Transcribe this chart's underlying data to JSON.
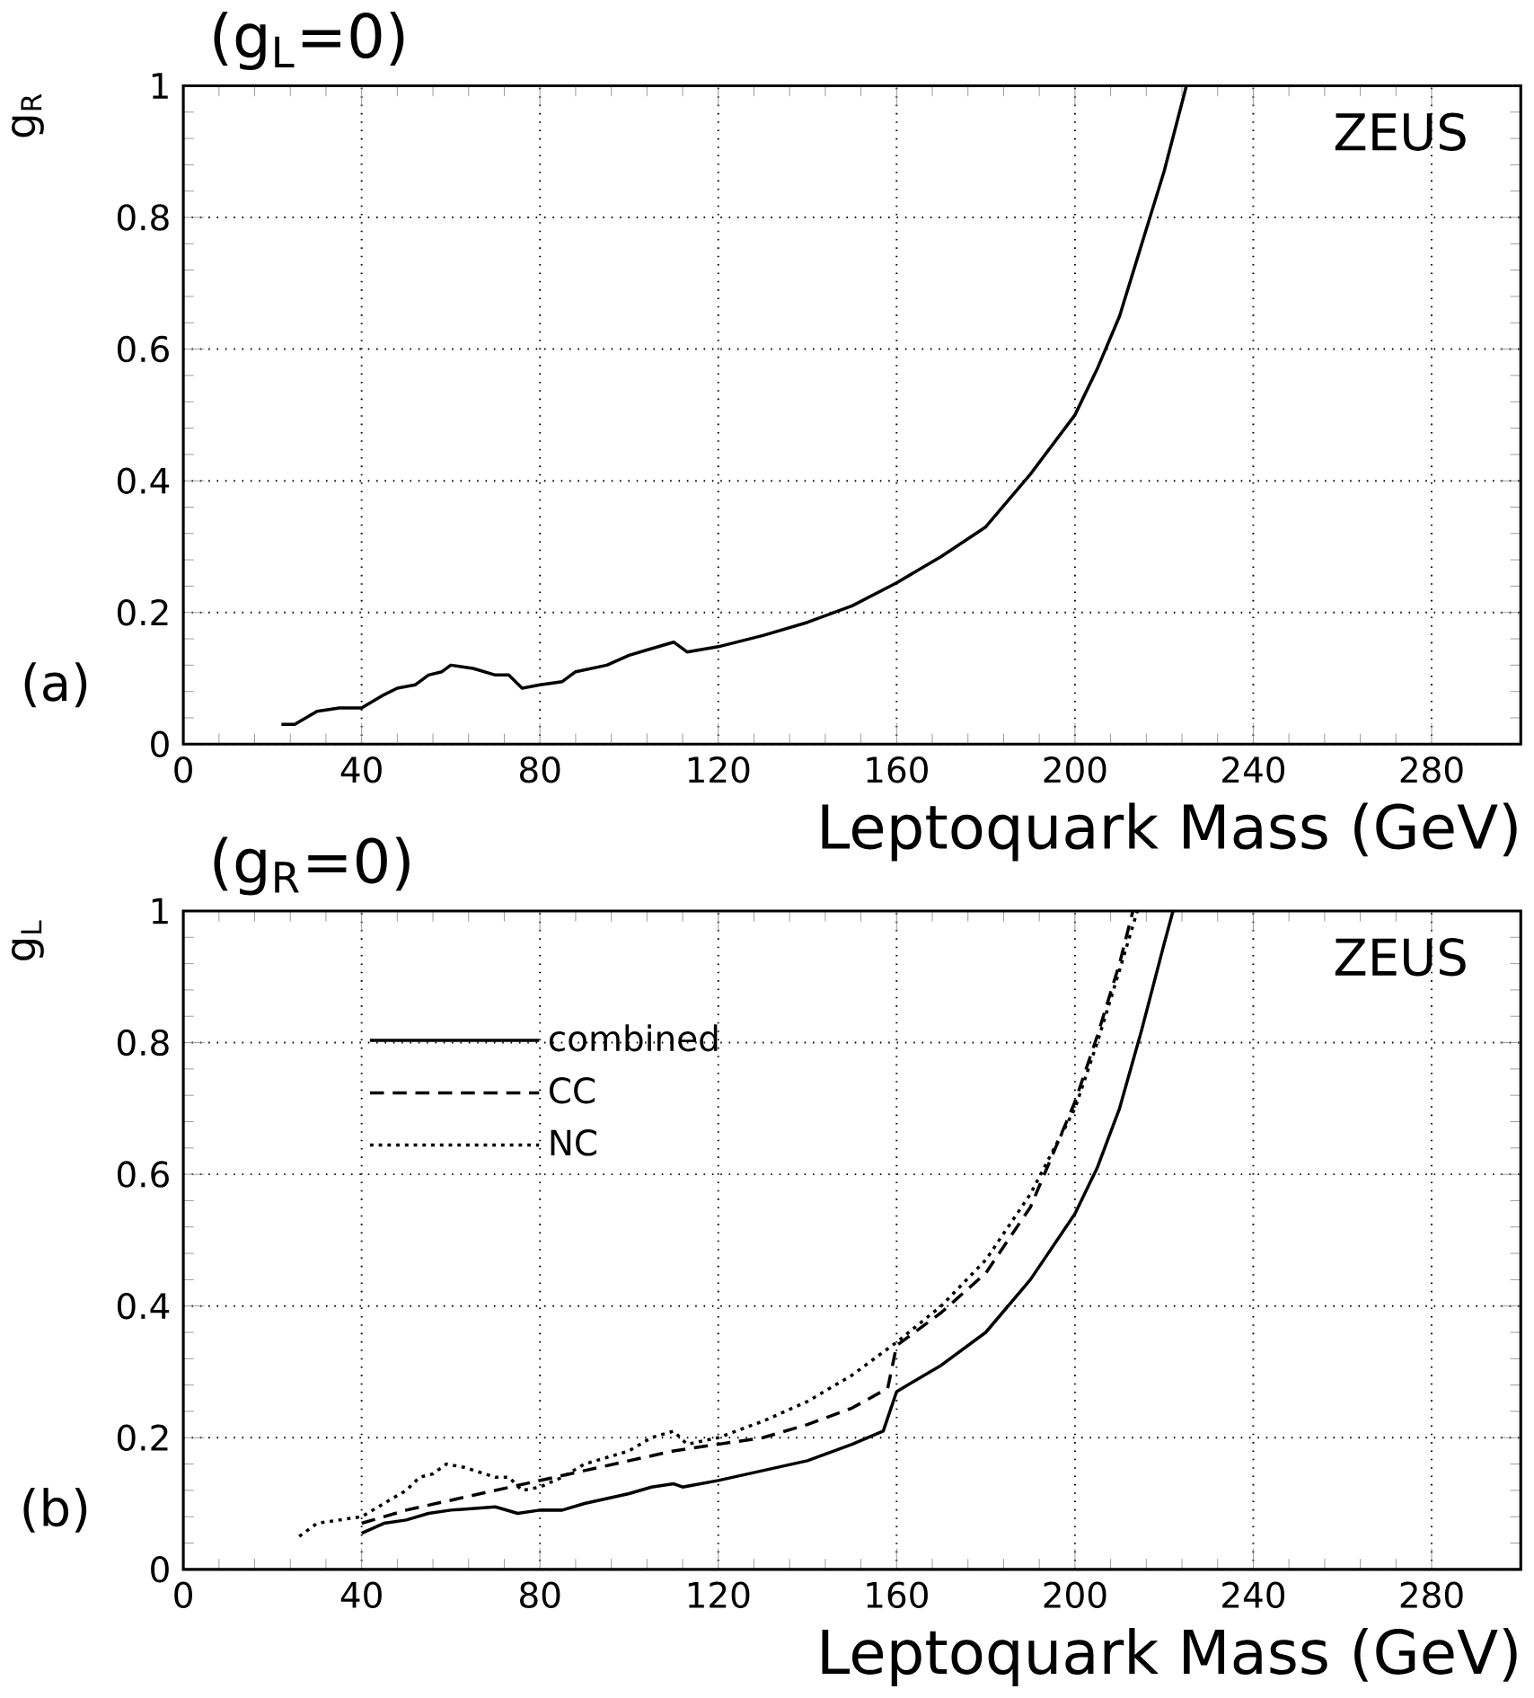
{
  "chart_data": [
    {
      "type": "line",
      "title": "(g$_{L}$=0)",
      "xlabel": "Leptoquark Mass (GeV)",
      "ylabel": "g$_{R}$",
      "annotations": [
        "ZEUS",
        "(a)"
      ],
      "xlim": [
        0,
        300
      ],
      "ylim": [
        0,
        1
      ],
      "xticks": [
        0,
        40,
        80,
        120,
        160,
        200,
        240,
        280
      ],
      "yticks": [
        0,
        0.2,
        0.4,
        0.6,
        0.8,
        1
      ],
      "grid": true,
      "legend": false,
      "series": [
        {
          "color": "#000000",
          "line_style": "solid",
          "x": [
            22,
            25,
            30,
            35,
            40,
            45,
            48,
            52,
            55,
            58,
            60,
            65,
            70,
            73,
            76,
            80,
            85,
            88,
            95,
            100,
            105,
            110,
            113,
            120,
            130,
            140,
            150,
            160,
            170,
            180,
            190,
            200,
            205,
            210,
            215,
            220,
            225
          ],
          "values": [
            0.03,
            0.03,
            0.05,
            0.055,
            0.055,
            0.075,
            0.085,
            0.09,
            0.105,
            0.11,
            0.12,
            0.115,
            0.105,
            0.105,
            0.085,
            0.09,
            0.095,
            0.11,
            0.12,
            0.135,
            0.145,
            0.155,
            0.14,
            0.148,
            0.165,
            0.185,
            0.21,
            0.245,
            0.285,
            0.33,
            0.41,
            0.5,
            0.57,
            0.65,
            0.76,
            0.87,
            1.0
          ]
        }
      ]
    },
    {
      "type": "line",
      "title": "(g$_{R}$=0)",
      "xlabel": "Leptoquark Mass (GeV)",
      "ylabel": "g$_{L}$",
      "annotations": [
        "ZEUS",
        "(b)"
      ],
      "xlim": [
        0,
        300
      ],
      "ylim": [
        0,
        1
      ],
      "xticks": [
        0,
        40,
        80,
        120,
        160,
        200,
        240,
        280
      ],
      "yticks": [
        0,
        0.2,
        0.4,
        0.6,
        0.8,
        1
      ],
      "grid": true,
      "legend": "top left",
      "series": [
        {
          "name": "combined",
          "color": "#000000",
          "line_style": "solid",
          "x": [
            40,
            45,
            50,
            55,
            60,
            70,
            75,
            80,
            85,
            90,
            100,
            105,
            110,
            112,
            120,
            130,
            140,
            150,
            157,
            159,
            160,
            170,
            180,
            190,
            200,
            205,
            210,
            215,
            220,
            222
          ],
          "values": [
            0.055,
            0.07,
            0.075,
            0.085,
            0.09,
            0.095,
            0.085,
            0.09,
            0.09,
            0.1,
            0.115,
            0.125,
            0.13,
            0.125,
            0.135,
            0.15,
            0.165,
            0.19,
            0.21,
            0.25,
            0.27,
            0.31,
            0.36,
            0.44,
            0.54,
            0.61,
            0.7,
            0.82,
            0.95,
            1.0
          ]
        },
        {
          "name": "CC",
          "color": "#000000",
          "line_style": "dashed",
          "x": [
            40,
            50,
            60,
            70,
            80,
            90,
            100,
            110,
            120,
            130,
            140,
            150,
            158,
            160,
            170,
            180,
            190,
            195,
            200,
            205,
            210,
            213
          ],
          "values": [
            0.07,
            0.09,
            0.105,
            0.12,
            0.135,
            0.15,
            0.165,
            0.18,
            0.19,
            0.2,
            0.22,
            0.245,
            0.275,
            0.34,
            0.39,
            0.45,
            0.55,
            0.63,
            0.71,
            0.81,
            0.92,
            1.0
          ]
        },
        {
          "name": "NC",
          "color": "#000000",
          "line_style": "dotted",
          "x": [
            26,
            30,
            35,
            40,
            45,
            50,
            53,
            56,
            59,
            63,
            70,
            73,
            76,
            80,
            85,
            90,
            100,
            105,
            110,
            113,
            120,
            130,
            140,
            150,
            160,
            170,
            180,
            190,
            200,
            205,
            210,
            214
          ],
          "values": [
            0.05,
            0.07,
            0.075,
            0.08,
            0.1,
            0.12,
            0.14,
            0.145,
            0.16,
            0.155,
            0.14,
            0.14,
            0.12,
            0.125,
            0.14,
            0.16,
            0.18,
            0.2,
            0.21,
            0.19,
            0.2,
            0.225,
            0.255,
            0.295,
            0.345,
            0.4,
            0.47,
            0.57,
            0.7,
            0.8,
            0.91,
            1.0
          ]
        }
      ]
    }
  ]
}
